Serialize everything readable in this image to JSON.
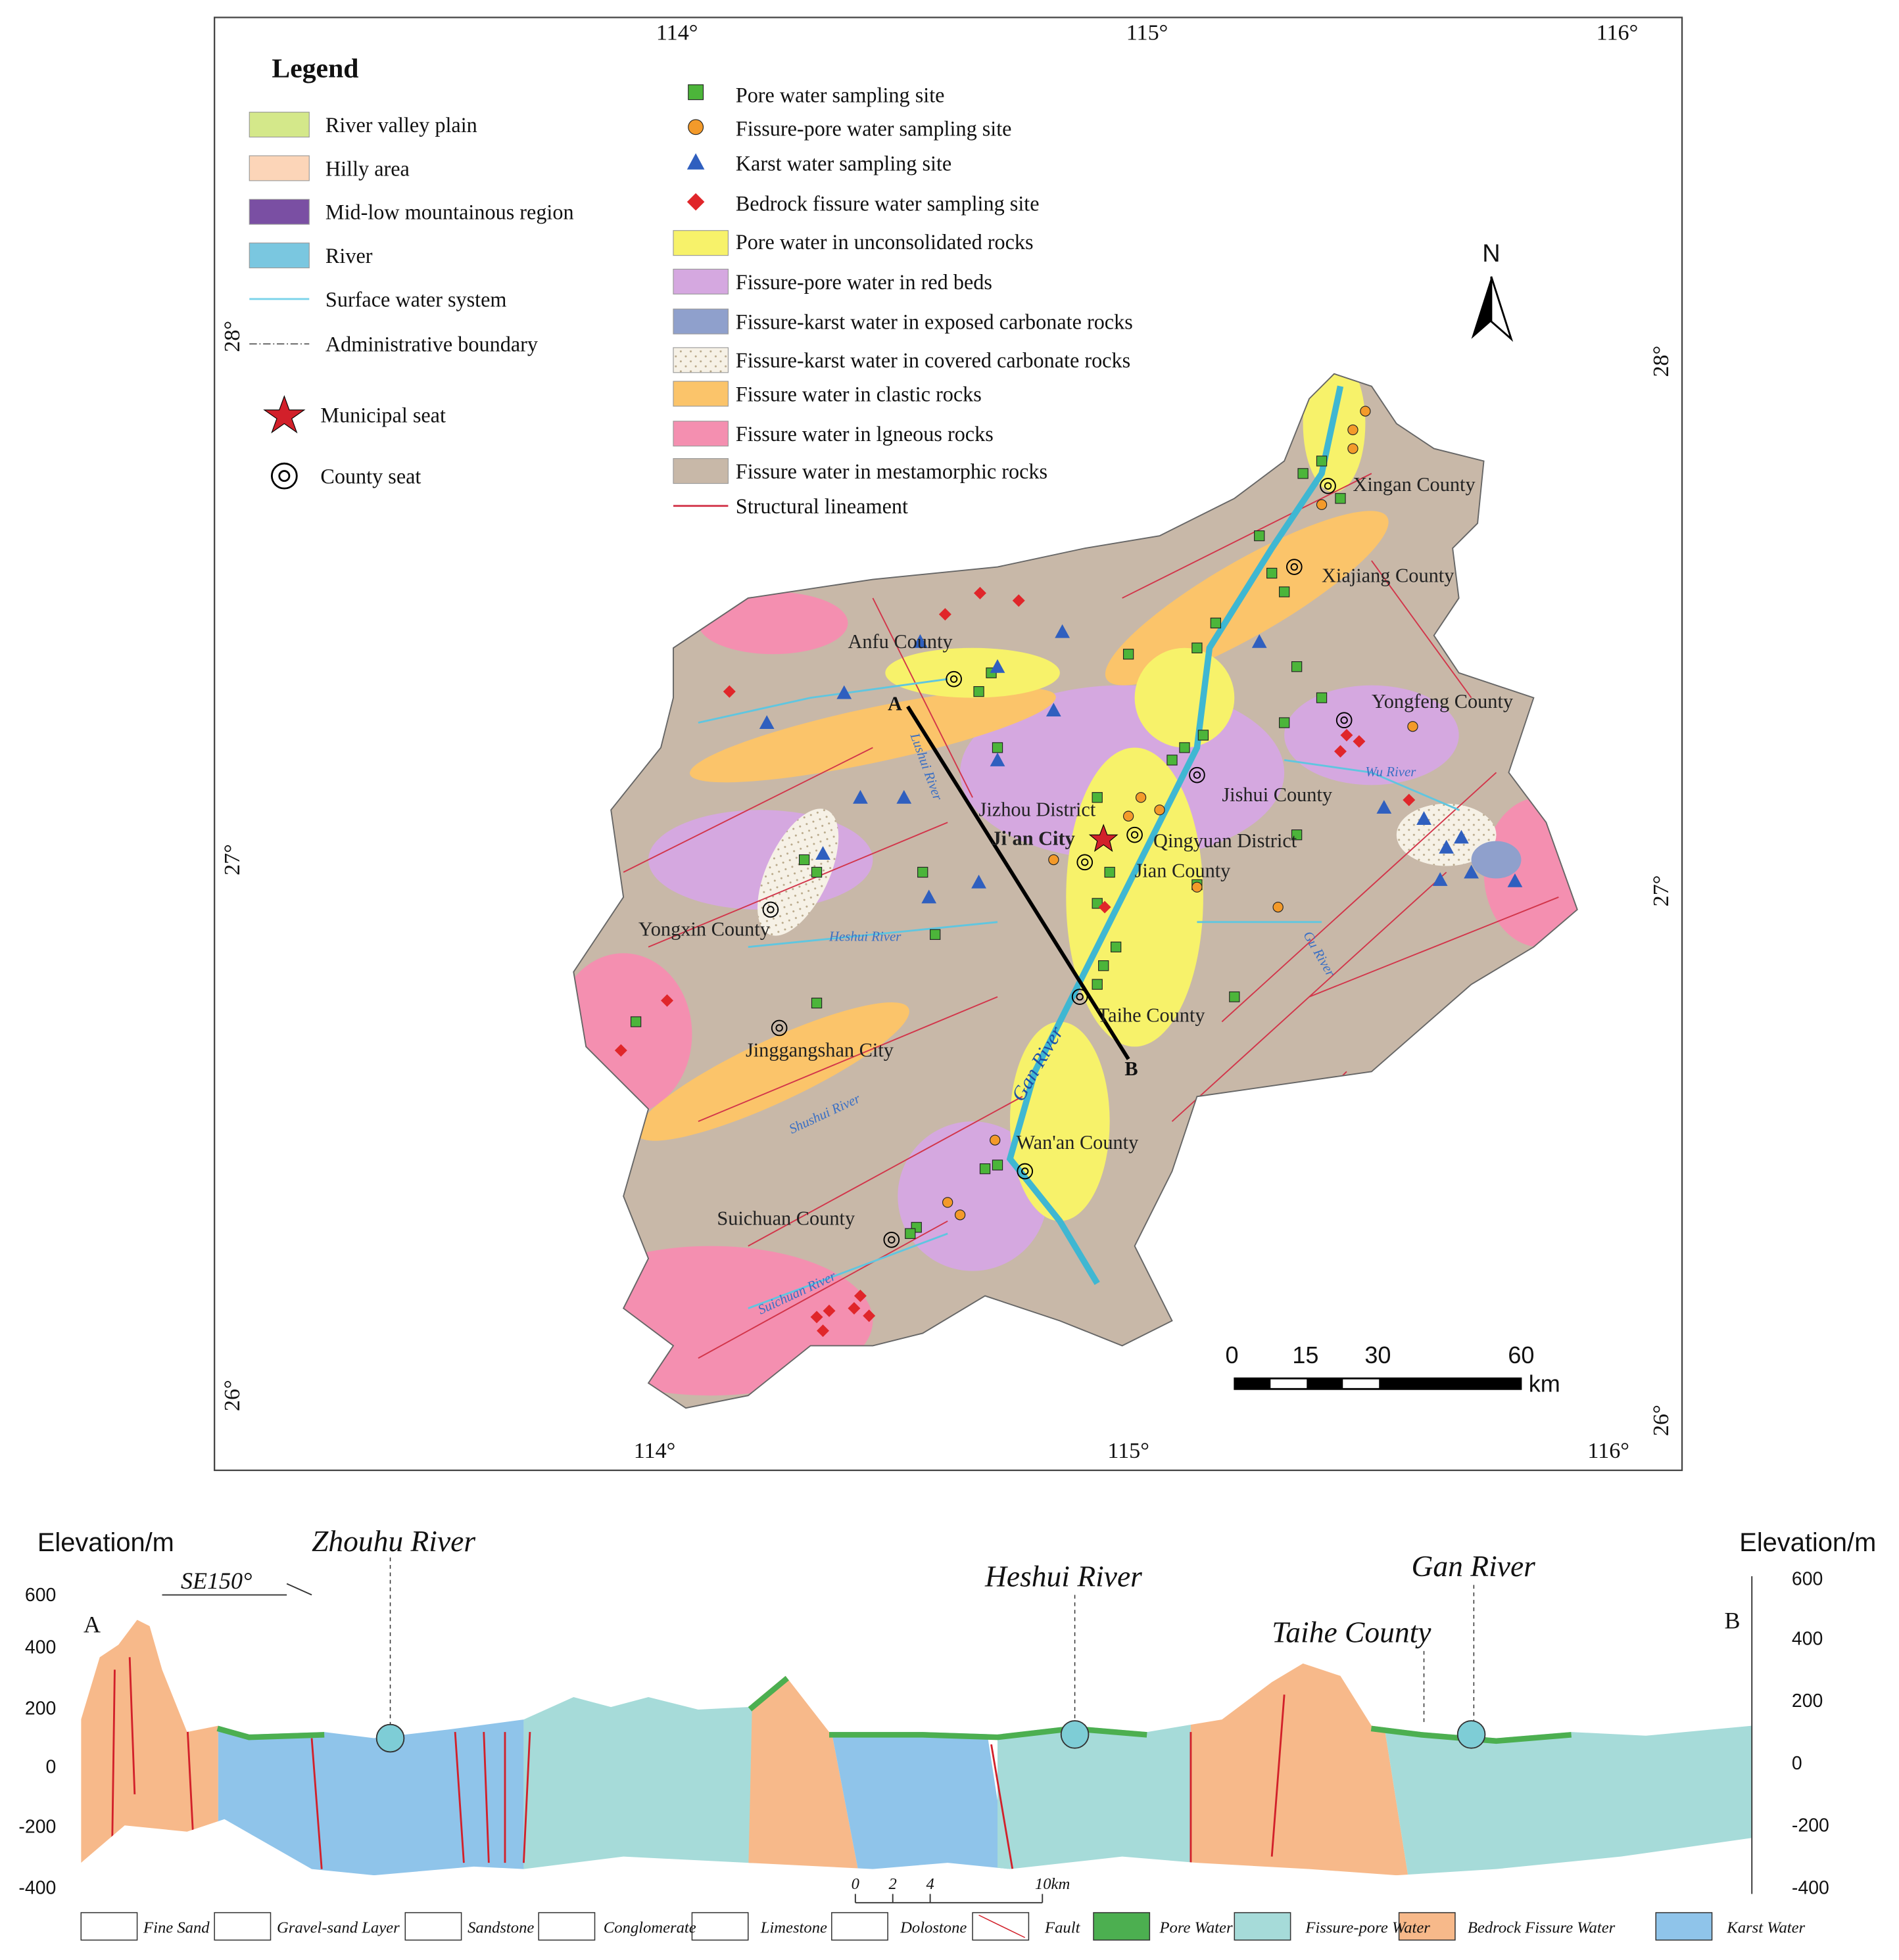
{
  "map": {
    "top_lon_labels": [
      "114°",
      "115°",
      "116°"
    ],
    "bottom_lon_labels": [
      "114°",
      "115°",
      "116°"
    ],
    "left_lat_labels": [
      "28°",
      "27°",
      "26°"
    ],
    "right_lat_labels": [
      "28°",
      "27°",
      "26°"
    ],
    "legend": {
      "title": "Legend",
      "items": [
        "River valley plain",
        "Hilly area",
        "Mid-low mountainous region",
        "River",
        "Surface water system",
        "Administrative boundary",
        "Municipal seat",
        "County seat"
      ]
    },
    "hydro_legend": {
      "items": [
        "Pore water sampling site",
        "Fissure-pore water sampling site",
        "Karst water sampling site",
        "Bedrock fissure water sampling site",
        "Pore water in unconsolidated rocks",
        "Fissure-pore water in red beds",
        "Fissure-karst water in exposed carbonate rocks",
        "Fissure-karst water in covered carbonate rocks",
        "Fissure water in clastic rocks",
        "Fissure water in lgneous rocks",
        "Fissure water in mestamorphic rocks",
        "Structural lineament"
      ]
    },
    "north": "N",
    "places": [
      "Xingan County",
      "Xiajiang County",
      "Anfu County",
      "Yongfeng County",
      "Jishui County",
      "Jizhou District",
      "Ji'an City",
      "Qingyuan District",
      "Jian County",
      "Yongxin County",
      "Taihe County",
      "Jinggangshan City",
      "Wan'an County",
      "Suichuan County"
    ],
    "rivers": [
      "Lushui River",
      "Wu River",
      "Gu River",
      "Heshui River",
      "Gan River",
      "Shushui River",
      "Suichuan River"
    ],
    "profile_line": [
      "A",
      "B"
    ],
    "scale_bar": {
      "ticks": [
        0,
        15,
        30,
        60
      ],
      "unit": "km"
    }
  },
  "section": {
    "left_axis_title": "Elevation/m",
    "right_axis_title": "Elevation/m",
    "left_ticks": [
      600,
      400,
      200,
      0,
      -200,
      -400
    ],
    "right_ticks": [
      600,
      400,
      200,
      0,
      -200,
      -400
    ],
    "labels": [
      "Zhouhu River",
      "Heshui River",
      "Gan River",
      "Taihe County"
    ],
    "direction": "SE150°",
    "ends": [
      "A",
      "B"
    ],
    "scale": [
      0,
      2,
      4,
      "10km"
    ],
    "legend": [
      "Fine Sand",
      "Gravel-sand Layer",
      "Sandstone",
      "Conglomerate",
      "Limestone",
      "Dolostone",
      "Fault",
      "Pore Water",
      "Fissure-pore Water",
      "Bedrock Fissure Water",
      "Karst Water"
    ]
  }
}
